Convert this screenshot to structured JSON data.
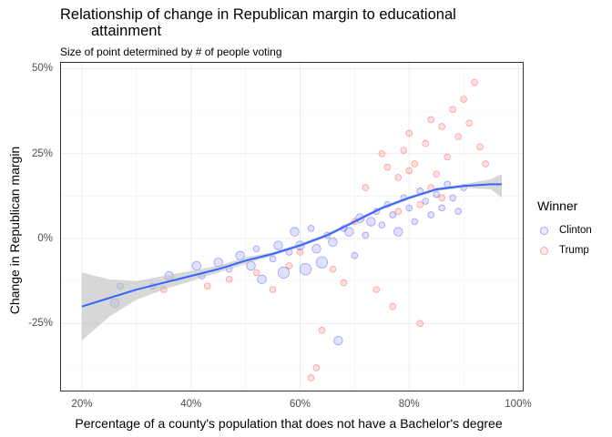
{
  "chart_data": {
    "type": "scatter",
    "title": "Relationship of change in Republican margin to educational attainment",
    "title_line1": "Relationship of change in Republican margin to educational",
    "title_line2": "attainment",
    "subtitle": "Size of point determined by # of people voting",
    "xlabel": "Percentage of a county's population that does not have a Bachelor's degree",
    "ylabel": "Change in Republican margin",
    "xlim": [
      0.16,
      1.01
    ],
    "ylim": [
      -0.45,
      0.52
    ],
    "x_ticks": [
      {
        "value": 0.2,
        "label": "20%"
      },
      {
        "value": 0.4,
        "label": "40%"
      },
      {
        "value": 0.6,
        "label": "60%"
      },
      {
        "value": 0.8,
        "label": "80%"
      },
      {
        "value": 1.0,
        "label": "100%"
      }
    ],
    "y_ticks": [
      {
        "value": 0.5,
        "label": "50%"
      },
      {
        "value": 0.25,
        "label": "25%"
      },
      {
        "value": 0.0,
        "label": "0%"
      },
      {
        "value": -0.25,
        "label": "-25%"
      }
    ],
    "grid": true,
    "legend": {
      "title": "Winner",
      "position": "right"
    },
    "series": [
      {
        "name": "Clinton",
        "color": "#0000ff",
        "points": [
          [
            0.26,
            -0.19,
            2
          ],
          [
            0.27,
            -0.14,
            1
          ],
          [
            0.33,
            -0.14,
            1
          ],
          [
            0.36,
            -0.11,
            2
          ],
          [
            0.41,
            -0.08,
            2
          ],
          [
            0.42,
            -0.11,
            1
          ],
          [
            0.45,
            -0.07,
            2
          ],
          [
            0.47,
            -0.09,
            1
          ],
          [
            0.49,
            -0.05,
            2
          ],
          [
            0.51,
            -0.08,
            2
          ],
          [
            0.52,
            -0.03,
            1
          ],
          [
            0.53,
            -0.12,
            2
          ],
          [
            0.55,
            -0.06,
            1
          ],
          [
            0.56,
            -0.02,
            2
          ],
          [
            0.57,
            -0.1,
            3
          ],
          [
            0.58,
            -0.04,
            1
          ],
          [
            0.59,
            0.02,
            2
          ],
          [
            0.6,
            -0.02,
            2
          ],
          [
            0.61,
            -0.09,
            3
          ],
          [
            0.62,
            0.03,
            1
          ],
          [
            0.63,
            -0.03,
            2
          ],
          [
            0.64,
            -0.07,
            3
          ],
          [
            0.65,
            0.01,
            1
          ],
          [
            0.66,
            -0.01,
            2
          ],
          [
            0.67,
            -0.3,
            2
          ],
          [
            0.68,
            0.03,
            1
          ],
          [
            0.69,
            0.02,
            2
          ],
          [
            0.7,
            -0.05,
            1
          ],
          [
            0.71,
            0.06,
            2
          ],
          [
            0.72,
            0.01,
            1
          ],
          [
            0.73,
            0.05,
            2
          ],
          [
            0.74,
            0.08,
            1
          ],
          [
            0.75,
            0.04,
            1
          ],
          [
            0.76,
            0.1,
            1
          ],
          [
            0.77,
            0.07,
            1
          ],
          [
            0.78,
            0.02,
            2
          ],
          [
            0.79,
            0.12,
            1
          ],
          [
            0.8,
            0.09,
            1
          ],
          [
            0.81,
            0.05,
            1
          ],
          [
            0.82,
            0.14,
            1
          ],
          [
            0.83,
            0.11,
            1
          ],
          [
            0.84,
            0.07,
            1
          ],
          [
            0.85,
            0.13,
            1
          ],
          [
            0.86,
            0.09,
            1
          ],
          [
            0.87,
            0.16,
            1
          ],
          [
            0.88,
            0.12,
            1
          ],
          [
            0.89,
            0.08,
            1
          ],
          [
            0.9,
            0.15,
            1
          ]
        ]
      },
      {
        "name": "Trump",
        "color": "#ff0000",
        "points": [
          [
            0.35,
            -0.15,
            1
          ],
          [
            0.43,
            -0.14,
            1
          ],
          [
            0.47,
            -0.12,
            1
          ],
          [
            0.52,
            -0.1,
            1
          ],
          [
            0.55,
            -0.15,
            1
          ],
          [
            0.58,
            -0.08,
            1
          ],
          [
            0.6,
            -0.04,
            1
          ],
          [
            0.62,
            -0.41,
            1
          ],
          [
            0.63,
            -0.38,
            1
          ],
          [
            0.64,
            -0.27,
            1
          ],
          [
            0.66,
            -0.09,
            1
          ],
          [
            0.68,
            -0.13,
            1
          ],
          [
            0.7,
            0.05,
            1
          ],
          [
            0.72,
            0.15,
            1
          ],
          [
            0.74,
            -0.15,
            1
          ],
          [
            0.75,
            0.25,
            1
          ],
          [
            0.76,
            0.21,
            1
          ],
          [
            0.77,
            -0.2,
            1
          ],
          [
            0.78,
            0.18,
            1
          ],
          [
            0.79,
            0.26,
            1
          ],
          [
            0.8,
            0.31,
            1
          ],
          [
            0.81,
            0.22,
            1
          ],
          [
            0.82,
            -0.25,
            1
          ],
          [
            0.83,
            0.28,
            1
          ],
          [
            0.84,
            0.35,
            1
          ],
          [
            0.85,
            0.19,
            1
          ],
          [
            0.86,
            0.33,
            1
          ],
          [
            0.87,
            0.24,
            1
          ],
          [
            0.88,
            0.38,
            1
          ],
          [
            0.89,
            0.3,
            1
          ],
          [
            0.9,
            0.41,
            1
          ],
          [
            0.91,
            0.34,
            1
          ],
          [
            0.92,
            0.46,
            1
          ],
          [
            0.93,
            0.27,
            1
          ],
          [
            0.94,
            0.22,
            1
          ],
          [
            0.82,
            0.1,
            1
          ],
          [
            0.84,
            0.15,
            1
          ],
          [
            0.86,
            0.12,
            1
          ],
          [
            0.78,
            0.08,
            1
          ],
          [
            0.8,
            0.2,
            1
          ]
        ]
      }
    ],
    "smooth": {
      "color": "#3366ff",
      "band_color": "#bdbdbd",
      "x": [
        0.2,
        0.25,
        0.3,
        0.35,
        0.4,
        0.45,
        0.5,
        0.55,
        0.6,
        0.65,
        0.7,
        0.75,
        0.8,
        0.85,
        0.9,
        0.95,
        0.97
      ],
      "y": [
        -0.2,
        -0.175,
        -0.15,
        -0.13,
        -0.11,
        -0.09,
        -0.065,
        -0.045,
        -0.02,
        0.01,
        0.05,
        0.09,
        0.12,
        0.145,
        0.155,
        0.16,
        0.16
      ],
      "lower": [
        -0.3,
        -0.23,
        -0.18,
        -0.15,
        -0.125,
        -0.1,
        -0.075,
        -0.05,
        -0.025,
        0.005,
        0.045,
        0.085,
        0.115,
        0.14,
        0.15,
        0.145,
        0.12
      ],
      "upper": [
        -0.1,
        -0.12,
        -0.125,
        -0.11,
        -0.095,
        -0.08,
        -0.055,
        -0.04,
        -0.015,
        0.015,
        0.055,
        0.095,
        0.125,
        0.15,
        0.16,
        0.175,
        0.19
      ]
    }
  }
}
